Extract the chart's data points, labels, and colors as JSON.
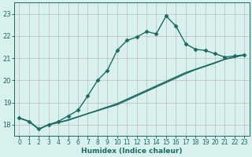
{
  "xlabel": "Humidex (Indice chaleur)",
  "bg_color": "#d8f0ee",
  "grid_color": "#c0b8c0",
  "line_color": "#1a6b62",
  "marker": "D",
  "markersize": 2.5,
  "linewidth": 1.0,
  "xlim": [
    -0.5,
    23.5
  ],
  "ylim": [
    17.5,
    23.5
  ],
  "yticks": [
    18,
    19,
    20,
    21,
    22,
    23
  ],
  "xticks": [
    0,
    1,
    2,
    3,
    4,
    5,
    6,
    7,
    8,
    9,
    10,
    11,
    12,
    13,
    14,
    15,
    16,
    17,
    18,
    19,
    20,
    21,
    22,
    23
  ],
  "line1_x": [
    0,
    1,
    2,
    3,
    4,
    5,
    6,
    7,
    8,
    9,
    10,
    11,
    12,
    13,
    14,
    15,
    16,
    17,
    18,
    19,
    20,
    21,
    22,
    23
  ],
  "line1_y": [
    18.3,
    18.15,
    17.8,
    18.0,
    18.15,
    18.4,
    18.65,
    19.3,
    20.0,
    20.45,
    21.35,
    21.8,
    21.95,
    22.2,
    22.1,
    22.9,
    22.45,
    21.65,
    21.4,
    21.35,
    21.2,
    21.05,
    21.1,
    21.15
  ],
  "line2_x": [
    0,
    1,
    2,
    3,
    4,
    5,
    6,
    7,
    8,
    9,
    10,
    11,
    12,
    13,
    14,
    15,
    16,
    17,
    18,
    19,
    20,
    21,
    22,
    23
  ],
  "line2_y": [
    18.3,
    18.15,
    17.8,
    18.0,
    18.1,
    18.2,
    18.35,
    18.5,
    18.65,
    18.8,
    18.95,
    19.15,
    19.35,
    19.55,
    19.75,
    19.95,
    20.15,
    20.35,
    20.5,
    20.65,
    20.8,
    20.95,
    21.05,
    21.15
  ],
  "line3_x": [
    0,
    1,
    2,
    3,
    4,
    5,
    6,
    7,
    8,
    9,
    10,
    11,
    12,
    13,
    14,
    15,
    16,
    17,
    18,
    19,
    20,
    21,
    22,
    23
  ],
  "line3_y": [
    18.3,
    18.15,
    17.8,
    18.0,
    18.1,
    18.22,
    18.36,
    18.5,
    18.63,
    18.77,
    18.9,
    19.1,
    19.3,
    19.5,
    19.7,
    19.9,
    20.1,
    20.3,
    20.48,
    20.63,
    20.78,
    20.95,
    21.05,
    21.15
  ]
}
